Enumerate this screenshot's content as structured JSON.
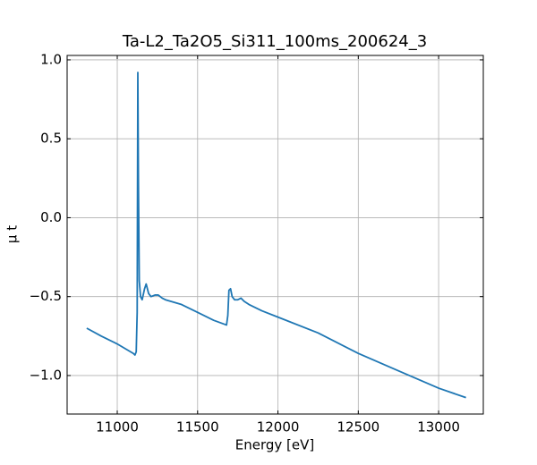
{
  "chart_data": {
    "type": "line",
    "title": "Ta-L2_Ta2O5_Si311_100ms_200624_3",
    "xlabel": "Energy [eV]",
    "ylabel": "μ t",
    "x": [
      10810,
      10900,
      11000,
      11100,
      11110,
      11118,
      11124,
      11128,
      11132,
      11137,
      11145,
      11155,
      11170,
      11180,
      11195,
      11210,
      11235,
      11255,
      11280,
      11300,
      11400,
      11500,
      11600,
      11680,
      11688,
      11695,
      11705,
      11715,
      11730,
      11750,
      11770,
      11790,
      11820,
      11900,
      12000,
      12250,
      12500,
      12750,
      13000,
      13170
    ],
    "series": [
      {
        "name": "μ t",
        "color": "#1f77b4",
        "values": [
          -0.7,
          -0.75,
          -0.8,
          -0.86,
          -0.87,
          -0.85,
          -0.6,
          0.92,
          0.2,
          -0.4,
          -0.5,
          -0.52,
          -0.45,
          -0.42,
          -0.48,
          -0.5,
          -0.49,
          -0.49,
          -0.51,
          -0.52,
          -0.55,
          -0.6,
          -0.65,
          -0.68,
          -0.62,
          -0.46,
          -0.45,
          -0.5,
          -0.52,
          -0.52,
          -0.51,
          -0.53,
          -0.55,
          -0.59,
          -0.63,
          -0.73,
          -0.86,
          -0.97,
          -1.08,
          -1.14
        ]
      }
    ],
    "xlim": [
      10688,
      13278
    ],
    "ylim": [
      -1.244,
      1.028
    ],
    "xticks": [
      11000,
      11500,
      12000,
      12500,
      13000
    ],
    "yticks": [
      {
        "value": 1.0,
        "label": "1.0"
      },
      0.5,
      {
        "value": 0.0,
        "label": "0.0"
      },
      {
        "value": -0.5,
        "label": "−0.5"
      },
      {
        "value": -1.0,
        "label": "−1.0"
      }
    ],
    "grid": true
  }
}
